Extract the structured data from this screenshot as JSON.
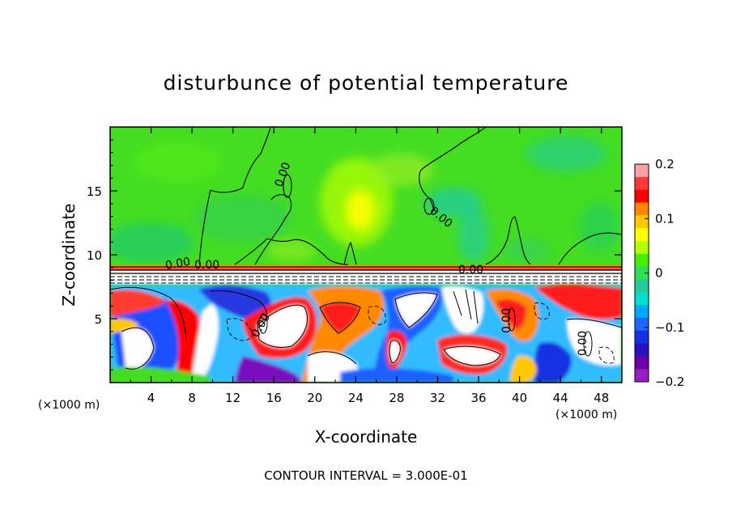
{
  "chart_data": {
    "type": "heatmap",
    "title": "disturbunce of potential temperature",
    "xlabel": "X-coordinate",
    "ylabel": "Z-coordinate",
    "x_unit_left": "(×1000 m)",
    "x_unit_right": "(×1000 m)",
    "xlim": [
      0,
      50
    ],
    "ylim": [
      0,
      20
    ],
    "x_ticks": [
      "4",
      "8",
      "12",
      "16",
      "20",
      "24",
      "28",
      "32",
      "36",
      "40",
      "44",
      "48"
    ],
    "x_tick_values": [
      4,
      8,
      12,
      16,
      20,
      24,
      28,
      32,
      36,
      40,
      44,
      48
    ],
    "y_ticks": [
      "5",
      "10",
      "15"
    ],
    "y_tick_values": [
      5,
      10,
      15
    ],
    "colorbar": {
      "range": [
        -0.2,
        0.2
      ],
      "labels": [
        "0.2",
        "0.1",
        "0",
        "−0.1",
        "−0.2"
      ],
      "label_values": [
        0.2,
        0.1,
        0,
        -0.1,
        -0.2
      ],
      "colors_top_to_bottom": [
        "#ff9fa6",
        "#ff3838",
        "#ff0000",
        "#ff8800",
        "#ffc800",
        "#ffff00",
        "#b4ff00",
        "#44ee00",
        "#33dd55",
        "#22cc99",
        "#00e0d0",
        "#00a8ff",
        "#1e66ff",
        "#1430e0",
        "#2a10c0",
        "#6a00aa",
        "#9b1dc0"
      ]
    },
    "contour_labels": [
      "0.00",
      "0.00",
      "0.00",
      "0.00",
      "0.00",
      "0.00",
      "0.00",
      "0.00"
    ],
    "contour_interval_text": "CONTOUR INTERVAL = 3.000E-01"
  }
}
